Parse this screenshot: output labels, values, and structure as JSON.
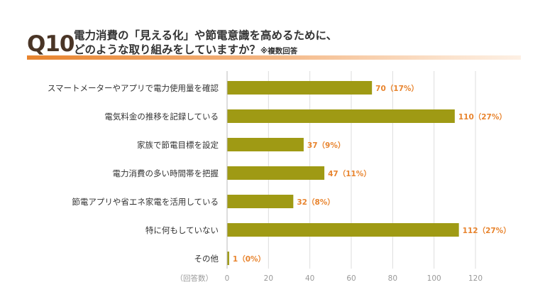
{
  "question": {
    "number": "Q10",
    "title_line1": "電力消費の「見える化」や節電意識を高めるために、",
    "title_line2": "どのような取り組みをしていますか？",
    "note": "※複数回答"
  },
  "chart_data": {
    "type": "bar",
    "orientation": "horizontal",
    "categories": [
      "スマートメーターやアプリで電力使用量を確認",
      "電気料金の推移を記録している",
      "家族で節電目標を設定",
      "電力消費の多い時間帯を把握",
      "節電アプリや省エネ家電を活用している",
      "特に何もしていない",
      "その他"
    ],
    "values": [
      70,
      110,
      37,
      47,
      32,
      112,
      1
    ],
    "data_labels": [
      "70（17%）",
      "110（27%）",
      "37（9%）",
      "47（11%）",
      "32（8%）",
      "112（27%）",
      "1（0%）"
    ],
    "xlim": [
      0,
      120
    ],
    "xticks": [
      0,
      20,
      40,
      60,
      80,
      100,
      120
    ],
    "xlabel": "（回答数）",
    "grid": true,
    "bar_color": "#9f9a14",
    "label_color": "#e8842e",
    "grid_color": "#dddddd"
  }
}
